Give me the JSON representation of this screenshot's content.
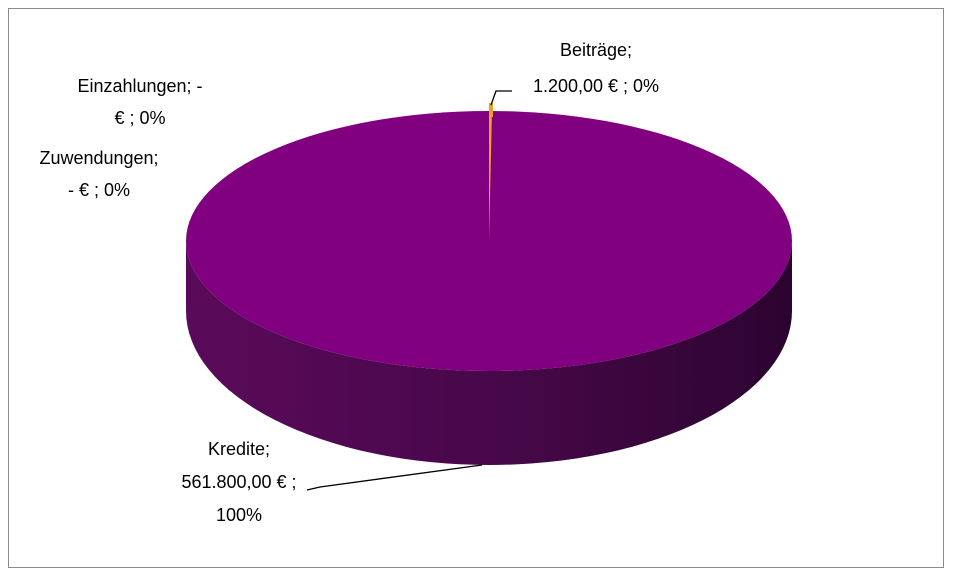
{
  "chart_data": {
    "type": "pie",
    "three_d": true,
    "legend": "none",
    "slices": [
      {
        "name": "Beiträge",
        "value": 1200.0,
        "value_label": "1.200,00 €",
        "percent_label": "0%",
        "color": "#f0a020"
      },
      {
        "name": "Kredite",
        "value": 561800.0,
        "value_label": "561.800,00 €",
        "percent_label": "100%",
        "color": "#800080"
      },
      {
        "name": "Zuwendungen",
        "value": 0,
        "value_label": "-   €",
        "percent_label": "0%",
        "color": "#4472c4"
      },
      {
        "name": "Einzahlungen",
        "value": 0,
        "value_label": "-   €",
        "percent_label": "0%",
        "color": "#5b9bd5"
      }
    ],
    "labels": {
      "beitraege": {
        "line1": "Beiträge;",
        "line2": "1.200,00 € ; 0%"
      },
      "einzahlungen": {
        "line1": "Einzahlungen; -",
        "line2": "€ ; 0%"
      },
      "zuwendungen": {
        "line1": "Zuwendungen;",
        "line2": "-  € ; 0%"
      },
      "kredite": {
        "line1": "Kredite;",
        "line2": "561.800,00 € ;",
        "line3": "100%"
      }
    }
  }
}
